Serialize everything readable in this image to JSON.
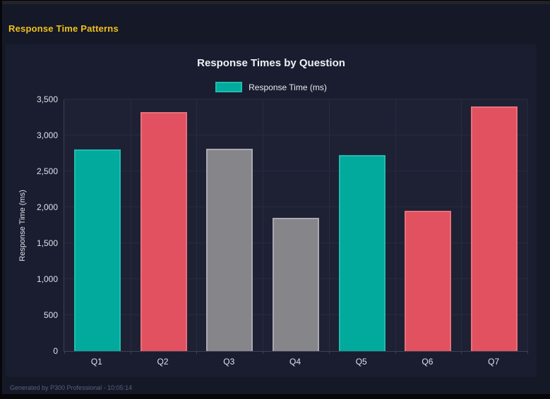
{
  "page": {
    "heading": "Response Time Patterns",
    "footer": "Generated by P300 Professional - 10:05:14"
  },
  "colors": {
    "heading_yellow": "#f0c11a",
    "teal": "#02aa9d",
    "red": "#e25160",
    "gray": "#85858a",
    "background": "#151827",
    "plot_background": "#1e2134",
    "gridline": "#272b3f"
  },
  "chart_data": {
    "type": "bar",
    "title": "Response Times by Question",
    "legend": [
      {
        "label": "Response Time (ms)",
        "color": "#02aa9d",
        "border_color": "#1fbdb0"
      }
    ],
    "legend_position": "top",
    "categories": [
      "Q1",
      "Q2",
      "Q3",
      "Q4",
      "Q5",
      "Q6",
      "Q7"
    ],
    "values": [
      2800,
      3320,
      2810,
      1850,
      2730,
      1950,
      3400
    ],
    "bar_colors": [
      "#02aa9d",
      "#e25160",
      "#85858a",
      "#85858a",
      "#02aa9d",
      "#e25160",
      "#e25160"
    ],
    "bar_border_colors": [
      "#1fbdb0",
      "#e97079",
      "#a9a9b0",
      "#a9a9b0",
      "#1fbdb0",
      "#e97079",
      "#e97079"
    ],
    "xlabel": "",
    "ylabel": "Response Time (ms)",
    "ylim": [
      0,
      3500
    ],
    "ytick_step": 500,
    "ytick_labels": [
      "0",
      "500",
      "1,000",
      "1,500",
      "2,000",
      "2,500",
      "3,000",
      "3,500"
    ],
    "grid": true
  }
}
